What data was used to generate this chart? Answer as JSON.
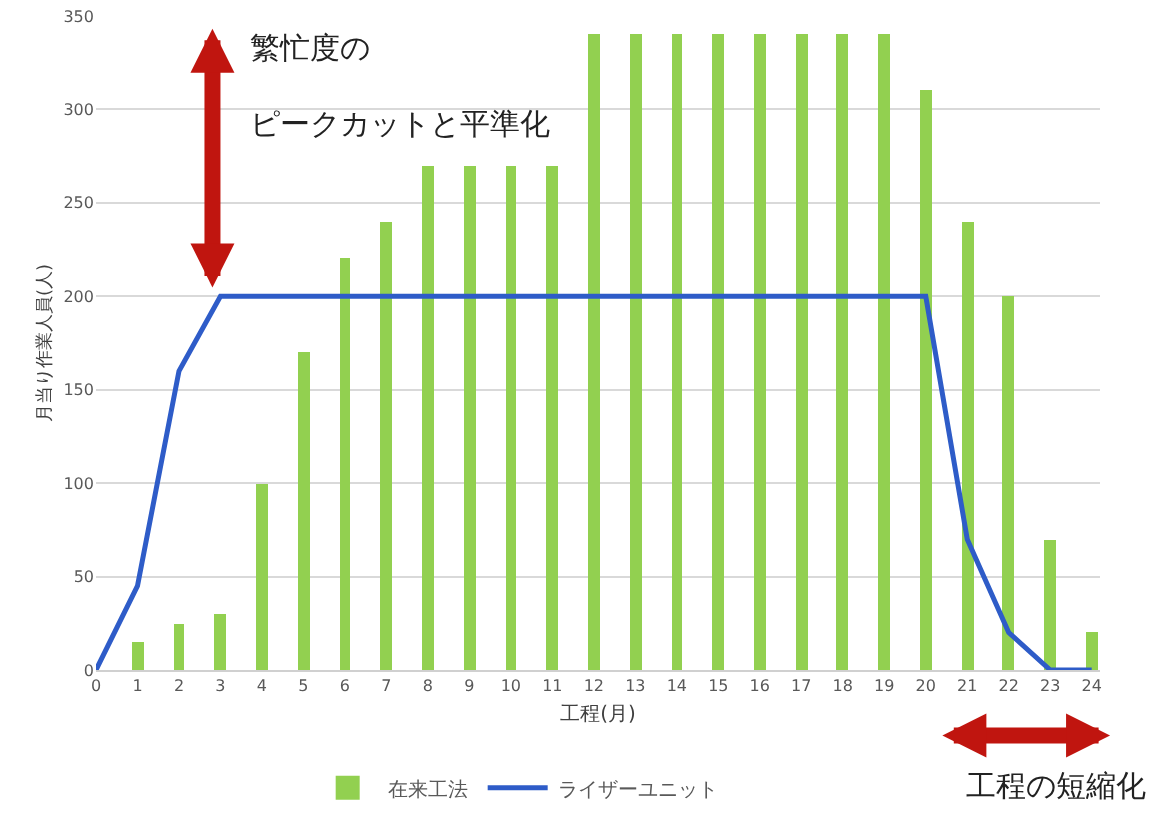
{
  "chart_data": {
    "type": "bar",
    "xlabel": "工程(月)",
    "ylabel": "月当り作業人員(人)",
    "x": [
      0,
      1,
      2,
      3,
      4,
      5,
      6,
      7,
      8,
      9,
      10,
      11,
      12,
      13,
      14,
      15,
      16,
      17,
      18,
      19,
      20,
      21,
      22,
      23,
      24
    ],
    "series": [
      {
        "name": "在来工法",
        "color": "#92d050",
        "values": [
          null,
          15,
          25,
          30,
          100,
          170,
          220,
          240,
          270,
          270,
          270,
          270,
          340,
          340,
          340,
          340,
          340,
          340,
          340,
          340,
          310,
          240,
          200,
          70,
          20
        ]
      },
      {
        "name": "ライザーユニット",
        "type": "line",
        "color": "#2e5cc8",
        "values": [
          0,
          45,
          160,
          200,
          200,
          200,
          200,
          200,
          200,
          200,
          200,
          200,
          200,
          200,
          200,
          200,
          200,
          200,
          200,
          200,
          200,
          70,
          20,
          0,
          0
        ]
      }
    ],
    "xlim": [
      0,
      24.2
    ],
    "xticks": [
      0,
      1,
      2,
      3,
      4,
      5,
      6,
      7,
      8,
      9,
      10,
      11,
      12,
      13,
      14,
      15,
      16,
      17,
      18,
      19,
      20,
      21,
      22,
      23,
      24
    ],
    "ylim": [
      0,
      350
    ],
    "yticks": [
      0,
      50,
      100,
      150,
      200,
      250,
      300,
      350
    ],
    "grid": "y",
    "legend": "bottom",
    "marker": "none",
    "line_style": "solid",
    "annotations": [
      "繁忙度の",
      "ピークカットと平準化",
      "工程の短縮化"
    ]
  }
}
